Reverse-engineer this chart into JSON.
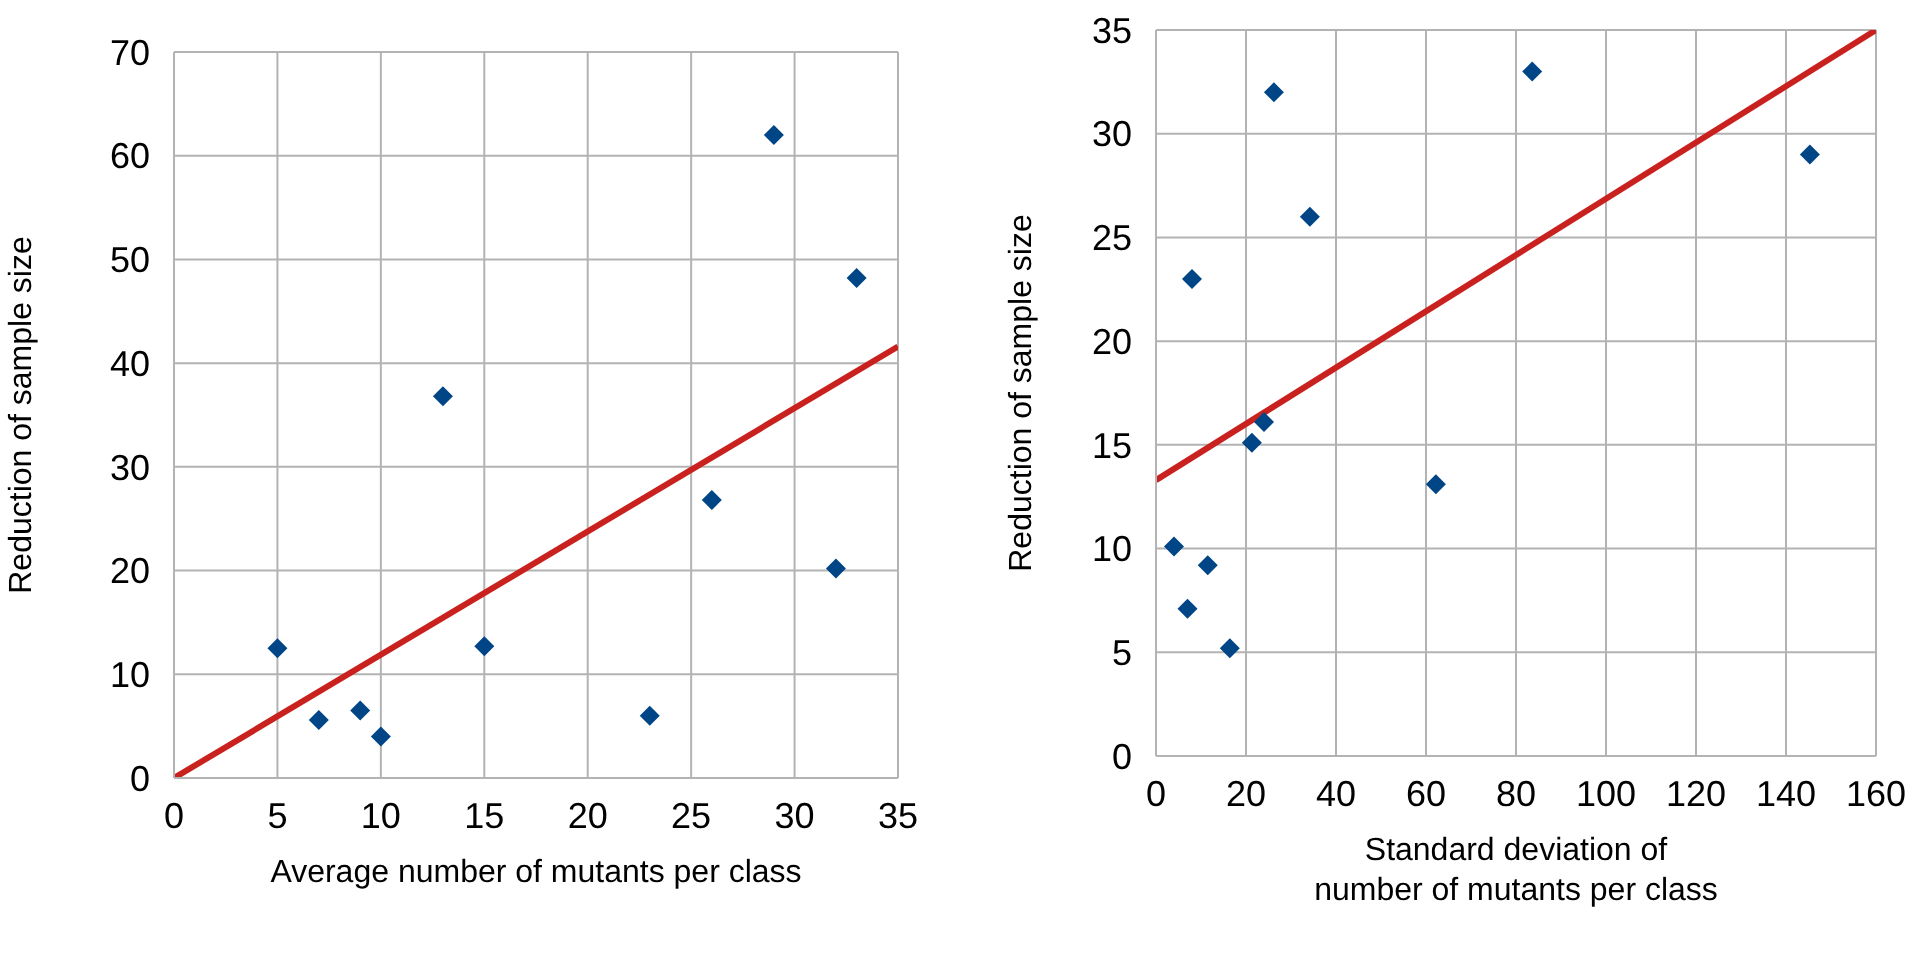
{
  "chart_data": [
    {
      "type": "scatter",
      "xlabel": "Average number of mutants per class",
      "ylabel": "Reduction of sample size",
      "xlim": [
        0,
        35
      ],
      "xticks": [
        0,
        5,
        10,
        15,
        20,
        25,
        30,
        35
      ],
      "ylim": [
        0,
        70
      ],
      "yticks": [
        0,
        10,
        20,
        30,
        40,
        50,
        60,
        70
      ],
      "grid": true,
      "legend": false,
      "series": [
        {
          "marker": "diamond",
          "color": "#004586",
          "x": [
            5,
            7,
            9,
            10,
            13,
            15,
            23,
            26,
            29,
            32,
            33
          ],
          "values": [
            12.5,
            5.6,
            6.5,
            4,
            36.8,
            12.7,
            6,
            26.8,
            62,
            20.2,
            48.2
          ]
        },
        {
          "type": "line",
          "color": "#c9211e",
          "x": [
            0,
            35
          ],
          "values": [
            0,
            41.6
          ]
        }
      ]
    },
    {
      "type": "scatter",
      "xlabel": "Standard deviation of\nnumber of mutants per class",
      "ylabel": "Reduction of sample size",
      "xlim": [
        0,
        160
      ],
      "xticks": [
        0,
        20,
        40,
        60,
        80,
        100,
        120,
        140,
        160
      ],
      "ylim": [
        0,
        35
      ],
      "yticks": [
        0,
        5,
        10,
        15,
        20,
        25,
        30,
        35
      ],
      "grid": true,
      "legend": false,
      "series": [
        {
          "marker": "diamond",
          "color": "#004586",
          "x": [
            4,
            7,
            8,
            11.5,
            16.4,
            21.3,
            24,
            26.2,
            34.2,
            62.2,
            83.6,
            145.3
          ],
          "values": [
            10.1,
            7.1,
            23,
            9.2,
            5.2,
            15.1,
            16.1,
            32,
            26,
            13.1,
            33,
            29
          ]
        },
        {
          "type": "line",
          "color": "#c9211e",
          "x": [
            0,
            160
          ],
          "values": [
            13.3,
            35
          ]
        }
      ]
    }
  ]
}
